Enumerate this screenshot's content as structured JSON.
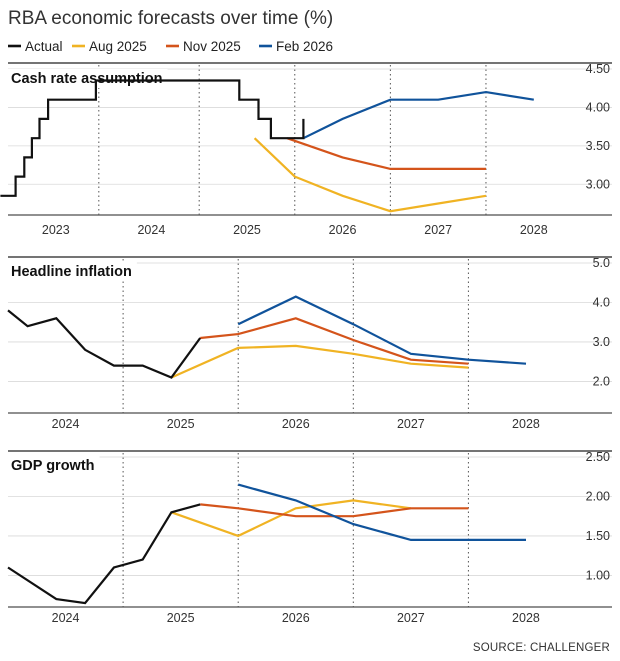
{
  "title": "RBA economic forecasts over time (%)",
  "source": "SOURCE: CHALLENGER",
  "colors": {
    "Actual": "#111111",
    "Aug 2025": "#f0b323",
    "Nov 2025": "#d4541b",
    "Feb 2026": "#10539b"
  },
  "chart_data": [
    {
      "type": "line",
      "title": "Cash rate assumption",
      "yticks": [
        "3.00",
        "3.50",
        "4.00",
        "4.50"
      ],
      "ylim": [
        2.6,
        4.5
      ],
      "xlim": [
        2022.5,
        2028.4
      ],
      "year_labels": [
        "2023",
        "2024",
        "2025",
        "2026",
        "2027",
        "2028"
      ],
      "year_positions": [
        2023.0,
        2024.0,
        2025.0,
        2026.0,
        2027.0,
        2028.0
      ],
      "dotted_lines": [
        2023.45,
        2024.5,
        2025.5,
        2026.5,
        2027.5
      ],
      "series": [
        {
          "name": "Actual",
          "step": true,
          "x": [
            2022.42,
            2022.58,
            2022.67,
            2022.75,
            2022.83,
            2022.92,
            2023.17,
            2023.42,
            2023.83,
            2024.0,
            2024.92,
            2025.12,
            2025.25,
            2025.5,
            2025.59
          ],
          "y": [
            2.85,
            3.1,
            3.35,
            3.6,
            3.85,
            4.1,
            4.1,
            4.35,
            4.35,
            4.35,
            4.1,
            3.85,
            3.6,
            3.6,
            3.85
          ]
        },
        {
          "name": "Aug 2025",
          "x": [
            2025.08,
            2025.5,
            2026.0,
            2026.5,
            2027.0,
            2027.5
          ],
          "y": [
            3.6,
            3.1,
            2.85,
            2.65,
            2.75,
            2.85
          ]
        },
        {
          "name": "Nov 2025",
          "x": [
            2025.42,
            2026.0,
            2026.5,
            2027.0,
            2027.5
          ],
          "y": [
            3.6,
            3.35,
            3.2,
            3.2,
            3.2
          ]
        },
        {
          "name": "Feb 2026",
          "x": [
            2025.59,
            2026.0,
            2026.5,
            2027.0,
            2027.5,
            2028.0
          ],
          "y": [
            3.6,
            3.85,
            4.1,
            4.1,
            4.2,
            4.1
          ]
        }
      ]
    },
    {
      "type": "line",
      "title": "Headline inflation",
      "yticks": [
        "2.0",
        "3.0",
        "4.0",
        "5.0"
      ],
      "ylim": [
        1.2,
        5.0
      ],
      "xlim": [
        2023.5,
        2028.4
      ],
      "year_labels": [
        "2024",
        "2025",
        "2026",
        "2027",
        "2028"
      ],
      "year_positions": [
        2024.0,
        2025.0,
        2026.0,
        2027.0,
        2028.0
      ],
      "dotted_lines": [
        2024.5,
        2025.5,
        2026.5,
        2027.5
      ],
      "series": [
        {
          "name": "Actual",
          "x": [
            2023.5,
            2023.67,
            2023.92,
            2024.17,
            2024.42,
            2024.67,
            2024.92,
            2025.17
          ],
          "y": [
            3.8,
            3.4,
            3.6,
            2.8,
            2.4,
            2.4,
            2.1,
            3.1
          ]
        },
        {
          "name": "Aug 2025",
          "x": [
            2024.92,
            2025.5,
            2026.0,
            2026.5,
            2027.0,
            2027.5
          ],
          "y": [
            2.1,
            2.85,
            2.9,
            2.7,
            2.45,
            2.35
          ]
        },
        {
          "name": "Nov 2025",
          "x": [
            2025.17,
            2025.5,
            2026.0,
            2026.5,
            2027.0,
            2027.5
          ],
          "y": [
            3.1,
            3.2,
            3.6,
            3.05,
            2.55,
            2.45
          ]
        },
        {
          "name": "Feb 2026",
          "x": [
            2025.5,
            2026.0,
            2026.5,
            2027.0,
            2027.5,
            2028.0
          ],
          "y": [
            3.45,
            4.15,
            3.45,
            2.7,
            2.55,
            2.45
          ]
        }
      ]
    },
    {
      "type": "line",
      "title": "GDP growth",
      "yticks": [
        "1.00",
        "1.50",
        "2.00",
        "2.50"
      ],
      "ylim": [
        0.6,
        2.5
      ],
      "xlim": [
        2023.5,
        2028.4
      ],
      "year_labels": [
        "2024",
        "2025",
        "2026",
        "2027",
        "2028"
      ],
      "year_positions": [
        2024.0,
        2025.0,
        2026.0,
        2027.0,
        2028.0
      ],
      "dotted_lines": [
        2024.5,
        2025.5,
        2026.5,
        2027.5
      ],
      "series": [
        {
          "name": "Actual",
          "x": [
            2023.5,
            2023.92,
            2024.17,
            2024.42,
            2024.67,
            2024.92,
            2025.17
          ],
          "y": [
            1.1,
            0.7,
            0.65,
            1.1,
            1.2,
            1.8,
            1.9
          ]
        },
        {
          "name": "Aug 2025",
          "x": [
            2024.92,
            2025.5,
            2026.0,
            2026.5,
            2027.0
          ],
          "y": [
            1.8,
            1.5,
            1.85,
            1.95,
            1.85
          ]
        },
        {
          "name": "Nov 2025",
          "x": [
            2025.17,
            2025.5,
            2026.0,
            2026.5,
            2027.0,
            2027.5
          ],
          "y": [
            1.9,
            1.85,
            1.75,
            1.75,
            1.85,
            1.85
          ]
        },
        {
          "name": "Feb 2026",
          "x": [
            2025.5,
            2026.0,
            2026.5,
            2027.0,
            2027.5,
            2028.0
          ],
          "y": [
            2.15,
            1.95,
            1.65,
            1.45,
            1.45,
            1.45
          ]
        }
      ]
    }
  ]
}
